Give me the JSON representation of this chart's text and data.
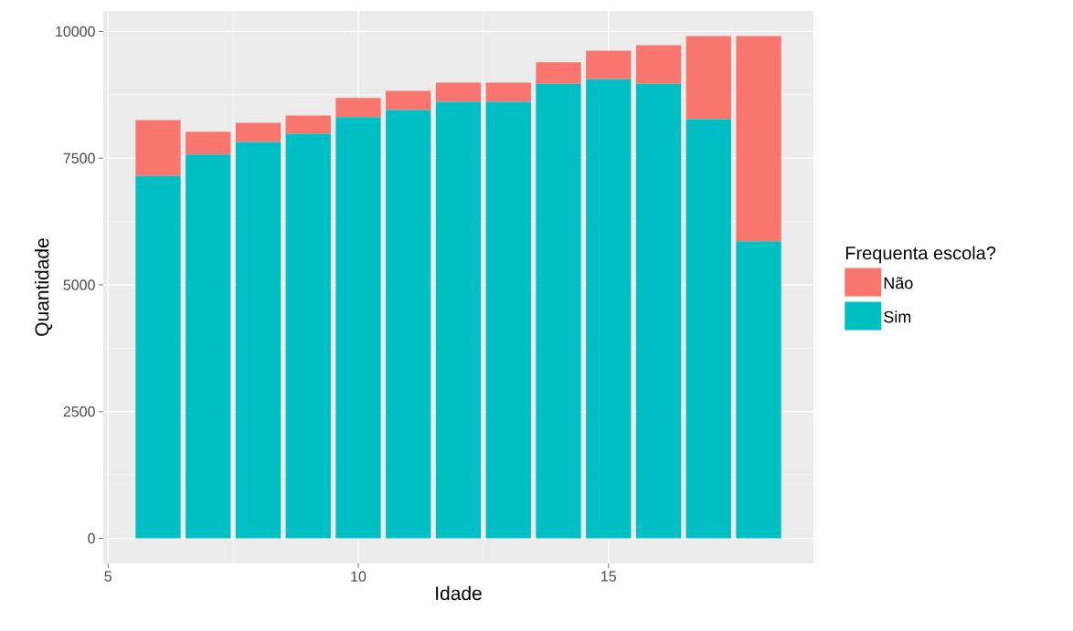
{
  "chart_data": {
    "type": "bar",
    "xlabel": "Idade",
    "ylabel": "Quantidade",
    "legend_title": "Frequenta escola?",
    "x": [
      6,
      7,
      8,
      9,
      10,
      11,
      12,
      13,
      14,
      15,
      16,
      17,
      18
    ],
    "series": [
      {
        "name": "Sim",
        "color": "#00bfc4",
        "values": [
          7150,
          7570,
          7820,
          7980,
          8310,
          8450,
          8610,
          8610,
          8970,
          9060,
          8970,
          8270,
          5860
        ]
      },
      {
        "name": "Não",
        "color": "#f8766d",
        "values": [
          1100,
          450,
          380,
          360,
          380,
          380,
          380,
          380,
          420,
          560,
          760,
          1640,
          4050
        ]
      }
    ],
    "stacked": true,
    "xlim": [
      4.905,
      19.095
    ],
    "ylim": [
      -495,
      10405
    ],
    "xticks": [
      5,
      10,
      15
    ],
    "yticks": [
      0,
      2500,
      5000,
      7500,
      10000
    ],
    "grid": true,
    "legend": "right"
  }
}
